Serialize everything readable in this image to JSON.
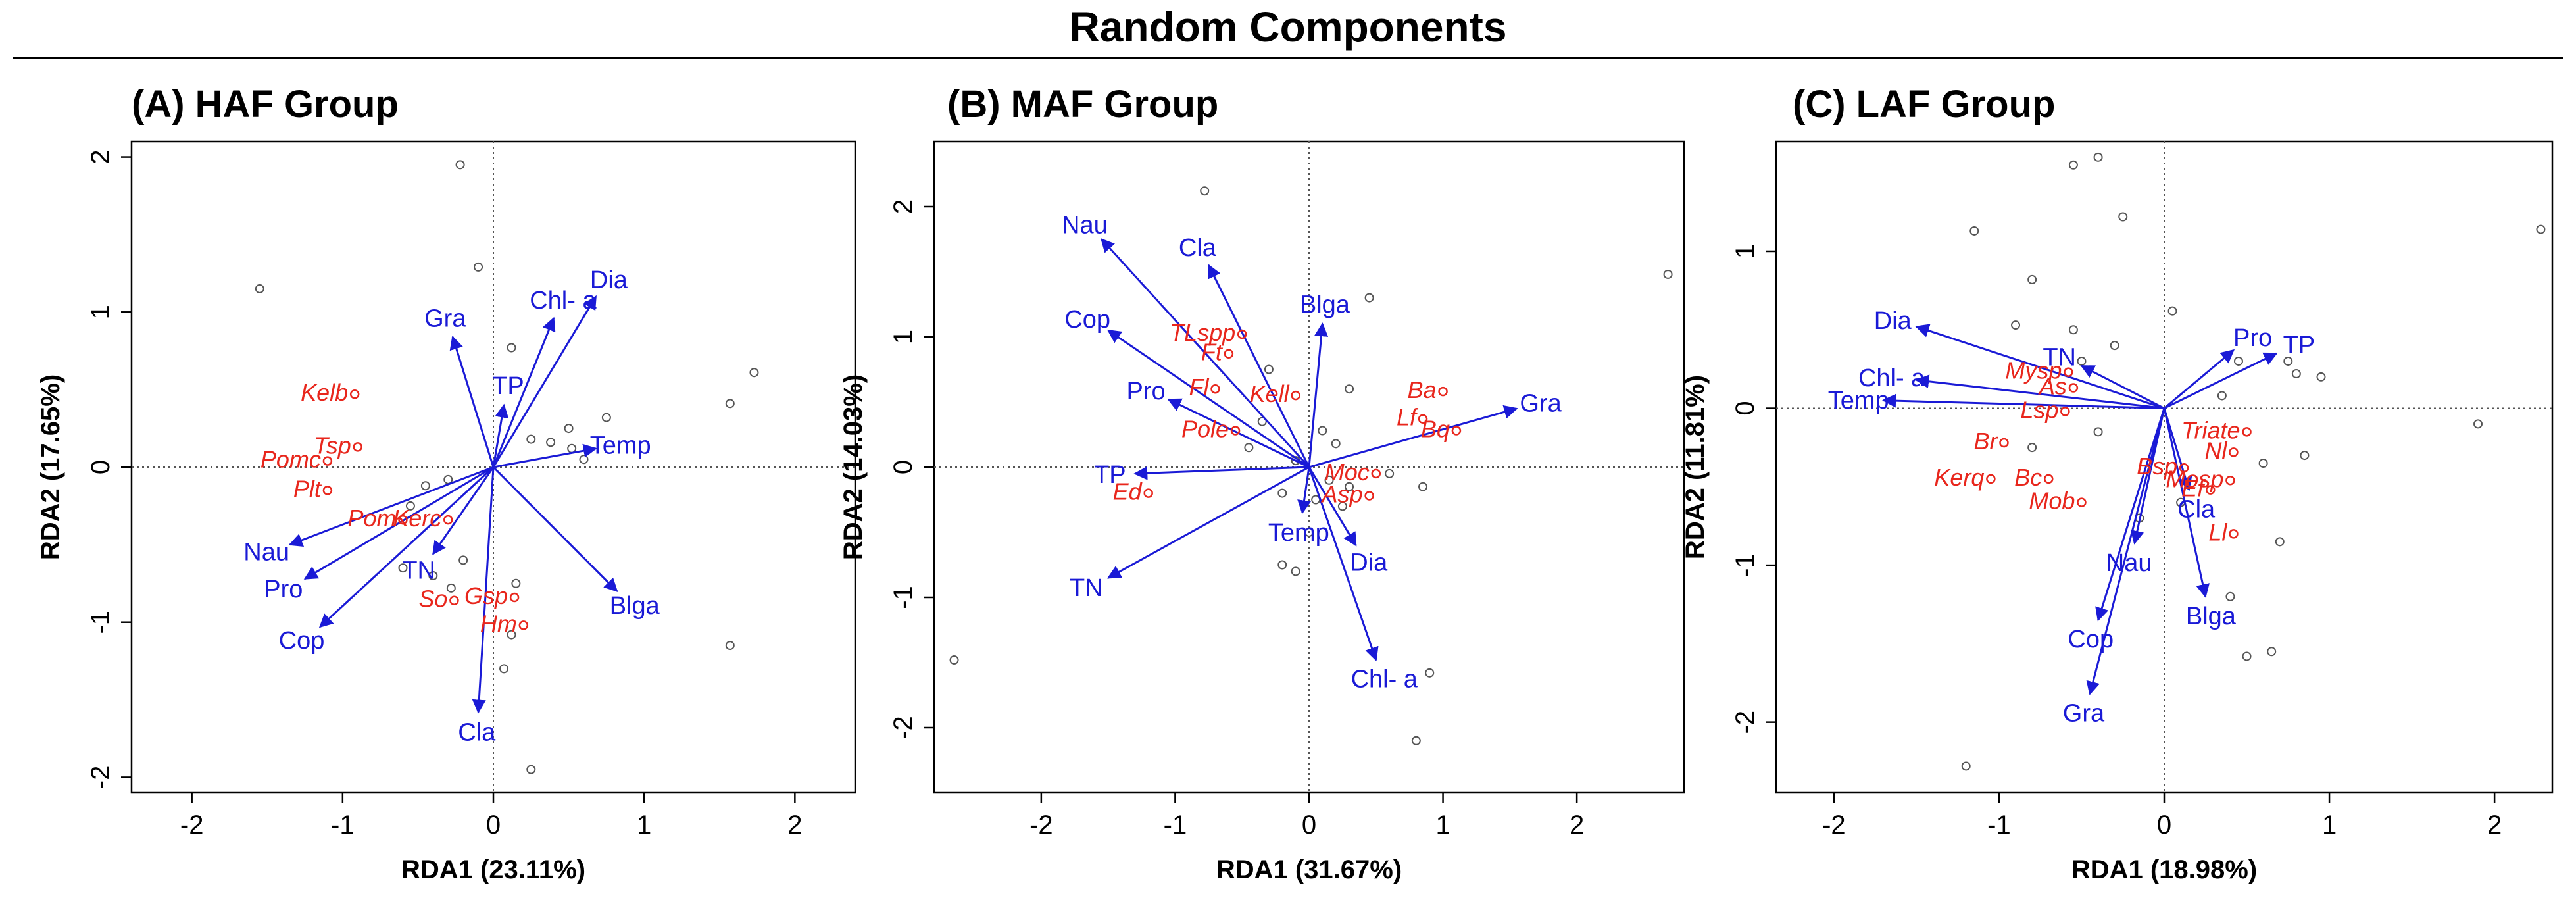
{
  "title": "Random Components",
  "colors": {
    "env": "#1a1ad6",
    "species": "#e8261c",
    "sites": "#555555",
    "axis": "#000000"
  },
  "chart_data": [
    {
      "type": "scatter",
      "subtype": "rda-triplot",
      "title": "(A) HAF Group",
      "xlabel": "RDA1 (23.11%)",
      "ylabel": "RDA2 (17.65%)",
      "xlim": [
        -2.4,
        2.4
      ],
      "ylim": [
        -2.1,
        2.1
      ],
      "xticks": [
        -2,
        -1,
        0,
        1,
        2
      ],
      "yticks": [
        -2,
        -1,
        0,
        1,
        2
      ],
      "env_arrows": [
        {
          "label": "Dia",
          "x": 0.68,
          "y": 1.1
        },
        {
          "label": "Chl- a",
          "x": 0.4,
          "y": 0.96
        },
        {
          "label": "Gra",
          "x": -0.27,
          "y": 0.84
        },
        {
          "label": "TP",
          "x": 0.07,
          "y": 0.4
        },
        {
          "label": "Temp",
          "x": 0.68,
          "y": 0.12
        },
        {
          "label": "Nau",
          "x": -1.35,
          "y": -0.5
        },
        {
          "label": "Pro",
          "x": -1.25,
          "y": -0.72
        },
        {
          "label": "Cop",
          "x": -1.15,
          "y": -1.03
        },
        {
          "label": "TN",
          "x": -0.4,
          "y": -0.56
        },
        {
          "label": "Blga",
          "x": 0.82,
          "y": -0.8
        },
        {
          "label": "Cla",
          "x": -0.1,
          "y": -1.58
        }
      ],
      "species": [
        {
          "label": "Kelb",
          "x": -0.92,
          "y": 0.47
        },
        {
          "label": "Tsp",
          "x": -0.9,
          "y": 0.13
        },
        {
          "label": "Pomc",
          "x": -1.1,
          "y": 0.04
        },
        {
          "label": "Plt",
          "x": -1.1,
          "y": -0.15
        },
        {
          "label": "Pom",
          "x": -0.6,
          "y": -0.34
        },
        {
          "label": "Kerc",
          "x": -0.3,
          "y": -0.34
        },
        {
          "label": "Gsp",
          "x": 0.14,
          "y": -0.84
        },
        {
          "label": "So",
          "x": -0.26,
          "y": -0.86
        },
        {
          "label": "Hm",
          "x": 0.2,
          "y": -1.02
        }
      ],
      "sites": [
        {
          "x": -0.22,
          "y": 1.95
        },
        {
          "x": -1.55,
          "y": 1.15
        },
        {
          "x": -0.1,
          "y": 1.29
        },
        {
          "x": 0.12,
          "y": 0.77
        },
        {
          "x": 0.5,
          "y": 0.25
        },
        {
          "x": 0.52,
          "y": 0.12
        },
        {
          "x": 0.38,
          "y": 0.16
        },
        {
          "x": 0.6,
          "y": 0.05
        },
        {
          "x": 0.75,
          "y": 0.32
        },
        {
          "x": 0.25,
          "y": 0.18
        },
        {
          "x": -0.3,
          "y": -0.08
        },
        {
          "x": -0.45,
          "y": -0.12
        },
        {
          "x": -0.55,
          "y": -0.25
        },
        {
          "x": -0.2,
          "y": -0.6
        },
        {
          "x": -0.4,
          "y": -0.7
        },
        {
          "x": -0.6,
          "y": -0.65
        },
        {
          "x": -0.28,
          "y": -0.78
        },
        {
          "x": 0.12,
          "y": -1.08
        },
        {
          "x": 0.07,
          "y": -1.3
        },
        {
          "x": 0.25,
          "y": -1.95
        },
        {
          "x": 1.57,
          "y": 0.41
        },
        {
          "x": 1.73,
          "y": 0.61
        },
        {
          "x": 1.57,
          "y": -1.15
        },
        {
          "x": 0.15,
          "y": -0.75
        }
      ]
    },
    {
      "type": "scatter",
      "subtype": "rda-triplot",
      "title": "(B) MAF Group",
      "xlabel": "RDA1 (31.67%)",
      "ylabel": "RDA2 (14.03%)",
      "xlim": [
        -2.8,
        2.8
      ],
      "ylim": [
        -2.5,
        2.5
      ],
      "xticks": [
        -2,
        -1,
        0,
        1,
        2
      ],
      "yticks": [
        -2,
        -1,
        0,
        1,
        2
      ],
      "env_arrows": [
        {
          "label": "Nau",
          "x": -1.55,
          "y": 1.75
        },
        {
          "label": "Cla",
          "x": -0.75,
          "y": 1.55
        },
        {
          "label": "Cop",
          "x": -1.5,
          "y": 1.05
        },
        {
          "label": "Blga",
          "x": 0.1,
          "y": 1.1
        },
        {
          "label": "Pro",
          "x": -1.05,
          "y": 0.52
        },
        {
          "label": "Gra",
          "x": 1.55,
          "y": 0.45
        },
        {
          "label": "TP",
          "x": -1.3,
          "y": -0.05
        },
        {
          "label": "TN",
          "x": -1.5,
          "y": -0.85
        },
        {
          "label": "Temp",
          "x": -0.05,
          "y": -0.35
        },
        {
          "label": "Dia",
          "x": 0.35,
          "y": -0.6
        },
        {
          "label": "Chl- a",
          "x": 0.5,
          "y": -1.48
        }
      ],
      "species": [
        {
          "label": "TLspp",
          "x": -0.5,
          "y": 1.02
        },
        {
          "label": "Ft",
          "x": -0.6,
          "y": 0.87
        },
        {
          "label": "Fl",
          "x": -0.7,
          "y": 0.6
        },
        {
          "label": "Kell",
          "x": -0.1,
          "y": 0.55
        },
        {
          "label": "Ba",
          "x": 1.0,
          "y": 0.58
        },
        {
          "label": "Lf",
          "x": 0.85,
          "y": 0.37
        },
        {
          "label": "Bq",
          "x": 1.1,
          "y": 0.28
        },
        {
          "label": "Pole",
          "x": -0.55,
          "y": 0.28
        },
        {
          "label": "Moc",
          "x": 0.5,
          "y": -0.05
        },
        {
          "label": "Asp",
          "x": 0.45,
          "y": -0.22
        },
        {
          "label": "Ed",
          "x": -1.2,
          "y": -0.2
        }
      ],
      "sites": [
        {
          "x": -0.78,
          "y": 2.12
        },
        {
          "x": 2.68,
          "y": 1.48
        },
        {
          "x": -2.65,
          "y": -1.48
        },
        {
          "x": 0.45,
          "y": 1.3
        },
        {
          "x": -0.3,
          "y": 0.75
        },
        {
          "x": 0.3,
          "y": 0.6
        },
        {
          "x": 0.1,
          "y": 0.28
        },
        {
          "x": 0.2,
          "y": 0.18
        },
        {
          "x": -0.1,
          "y": 0.05
        },
        {
          "x": 0.15,
          "y": -0.1
        },
        {
          "x": 0.3,
          "y": -0.15
        },
        {
          "x": -0.2,
          "y": -0.2
        },
        {
          "x": 0.05,
          "y": -0.25
        },
        {
          "x": 0.25,
          "y": -0.3
        },
        {
          "x": -0.35,
          "y": 0.35
        },
        {
          "x": 0.0,
          "y": -0.5
        },
        {
          "x": -0.1,
          "y": -0.8
        },
        {
          "x": -0.2,
          "y": -0.75
        },
        {
          "x": 0.85,
          "y": -0.15
        },
        {
          "x": 0.9,
          "y": -1.58
        },
        {
          "x": 0.8,
          "y": -2.1
        },
        {
          "x": 0.6,
          "y": -0.05
        },
        {
          "x": -0.45,
          "y": 0.15
        }
      ]
    },
    {
      "type": "scatter",
      "subtype": "rda-triplot",
      "title": "(C) LAF Group",
      "xlabel": "RDA1 (18.98%)",
      "ylabel": "RDA2 (11.81%)",
      "xlim": [
        -2.35,
        2.35
      ],
      "ylim": [
        -2.45,
        1.7
      ],
      "xticks": [
        -2,
        -1,
        0,
        1,
        2
      ],
      "yticks": [
        -2,
        -1,
        0,
        1
      ],
      "env_arrows": [
        {
          "label": "Dia",
          "x": -1.5,
          "y": 0.52
        },
        {
          "label": "TN",
          "x": -0.5,
          "y": 0.27
        },
        {
          "label": "Chl- a",
          "x": -1.5,
          "y": 0.18
        },
        {
          "label": "Temp",
          "x": -1.7,
          "y": 0.05
        },
        {
          "label": "Pro",
          "x": 0.42,
          "y": 0.37
        },
        {
          "label": "TP",
          "x": 0.68,
          "y": 0.35
        },
        {
          "label": "Nau",
          "x": -0.18,
          "y": -0.86
        },
        {
          "label": "Cla",
          "x": 0.15,
          "y": -0.52
        },
        {
          "label": "Blga",
          "x": 0.25,
          "y": -1.2
        },
        {
          "label": "Cop",
          "x": -0.4,
          "y": -1.35
        },
        {
          "label": "Gra",
          "x": -0.45,
          "y": -1.82
        }
      ],
      "species": [
        {
          "label": "Mysp",
          "x": -0.58,
          "y": 0.23
        },
        {
          "label": "As",
          "x": -0.55,
          "y": 0.13
        },
        {
          "label": "Lsp",
          "x": -0.6,
          "y": -0.02
        },
        {
          "label": "Triate",
          "x": 0.5,
          "y": -0.15
        },
        {
          "label": "Br",
          "x": -0.97,
          "y": -0.22
        },
        {
          "label": "Nl",
          "x": 0.42,
          "y": -0.28
        },
        {
          "label": "Kerq",
          "x": -1.05,
          "y": -0.45
        },
        {
          "label": "Bc",
          "x": -0.7,
          "y": -0.45
        },
        {
          "label": "Bsp",
          "x": 0.12,
          "y": -0.38
        },
        {
          "label": "Mosp",
          "x": 0.4,
          "y": -0.46
        },
        {
          "label": "Ef",
          "x": 0.28,
          "y": -0.52
        },
        {
          "label": "Mob",
          "x": -0.5,
          "y": -0.6
        },
        {
          "label": "Ll",
          "x": 0.42,
          "y": -0.8
        }
      ],
      "sites": [
        {
          "x": -0.55,
          "y": 1.55
        },
        {
          "x": -0.4,
          "y": 1.6
        },
        {
          "x": -0.25,
          "y": 1.22
        },
        {
          "x": -1.15,
          "y": 1.13
        },
        {
          "x": 2.28,
          "y": 1.14
        },
        {
          "x": -0.8,
          "y": 0.82
        },
        {
          "x": 0.05,
          "y": 0.62
        },
        {
          "x": -0.9,
          "y": 0.53
        },
        {
          "x": -0.55,
          "y": 0.5
        },
        {
          "x": -0.3,
          "y": 0.4
        },
        {
          "x": 0.45,
          "y": 0.3
        },
        {
          "x": 0.75,
          "y": 0.3
        },
        {
          "x": 0.8,
          "y": 0.22
        },
        {
          "x": 0.95,
          "y": 0.2
        },
        {
          "x": 0.35,
          "y": 0.08
        },
        {
          "x": 1.9,
          "y": -0.1
        },
        {
          "x": 0.85,
          "y": -0.3
        },
        {
          "x": 0.6,
          "y": -0.35
        },
        {
          "x": -0.4,
          "y": -0.15
        },
        {
          "x": -0.8,
          "y": -0.25
        },
        {
          "x": -0.15,
          "y": -0.7
        },
        {
          "x": 0.1,
          "y": -0.6
        },
        {
          "x": 0.7,
          "y": -0.85
        },
        {
          "x": 0.4,
          "y": -1.2
        },
        {
          "x": 0.5,
          "y": -1.58
        },
        {
          "x": 0.65,
          "y": -1.55
        },
        {
          "x": -1.2,
          "y": -2.28
        },
        {
          "x": -0.5,
          "y": 0.3
        }
      ]
    }
  ]
}
